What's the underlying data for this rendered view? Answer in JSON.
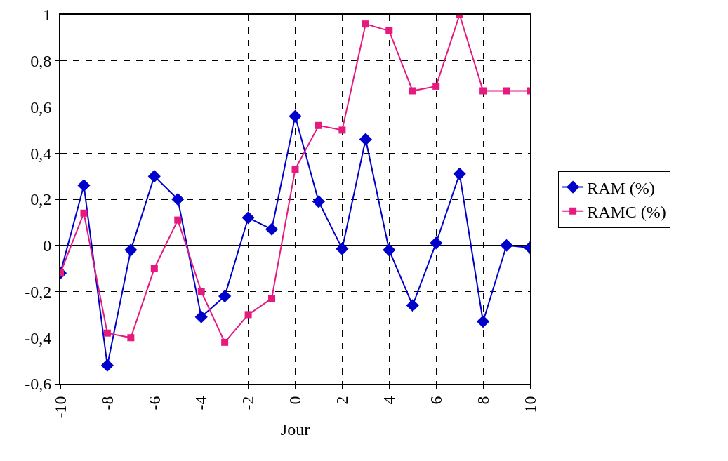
{
  "chart_data": {
    "type": "line",
    "xlabel": "Jour",
    "x": [
      -10,
      -9,
      -8,
      -7,
      -6,
      -5,
      -4,
      -3,
      -2,
      -1,
      0,
      1,
      2,
      3,
      4,
      5,
      6,
      7,
      8,
      9,
      10
    ],
    "series": [
      {
        "name": "RAM (%)",
        "color": "#0000cc",
        "marker": "diamond",
        "values": [
          -0.12,
          0.26,
          -0.52,
          -0.02,
          0.3,
          0.2,
          -0.31,
          -0.22,
          0.12,
          0.07,
          0.56,
          0.19,
          -0.015,
          0.46,
          -0.02,
          -0.26,
          0.01,
          0.31,
          -0.33,
          0.0,
          -0.01
        ]
      },
      {
        "name": "RAMC (%)",
        "color": "#e6197f",
        "marker": "square",
        "values": [
          -0.12,
          0.14,
          -0.38,
          -0.4,
          -0.1,
          0.11,
          -0.2,
          -0.42,
          -0.3,
          -0.23,
          0.33,
          0.52,
          0.5,
          0.96,
          0.93,
          0.67,
          0.69,
          1.0,
          0.67,
          0.67,
          0.67
        ]
      }
    ],
    "xlim": [
      -10,
      10
    ],
    "xticks": [
      -10,
      -8,
      -6,
      -4,
      -2,
      0,
      2,
      4,
      6,
      8,
      10
    ],
    "ylim": [
      -0.6,
      1
    ],
    "yticks": [
      {
        "value": -0.6,
        "label": "-0,6"
      },
      {
        "value": -0.4,
        "label": "-0,4"
      },
      {
        "value": -0.2,
        "label": "-0,2"
      },
      0,
      {
        "value": 0.2,
        "label": "0,2"
      },
      {
        "value": 0.4,
        "label": "0,4"
      },
      {
        "value": 0.6,
        "label": "0,6"
      },
      {
        "value": 0.8,
        "label": "0,8"
      },
      1
    ],
    "grid": true,
    "legend": "right",
    "line_style": "solid"
  }
}
